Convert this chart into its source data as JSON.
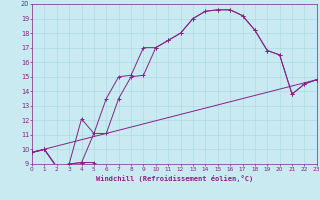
{
  "xlabel": "Windchill (Refroidissement éolien,°C)",
  "xlim": [
    0,
    23
  ],
  "ylim": [
    9,
    20
  ],
  "xticks": [
    0,
    1,
    2,
    3,
    4,
    5,
    6,
    7,
    8,
    9,
    10,
    11,
    12,
    13,
    14,
    15,
    16,
    17,
    18,
    19,
    20,
    21,
    22,
    23
  ],
  "yticks": [
    9,
    10,
    11,
    12,
    13,
    14,
    15,
    16,
    17,
    18,
    19,
    20
  ],
  "bg_color": "#c8eaf0",
  "grid_color": "#a8d8e0",
  "line_color": "#882288",
  "lines": [
    {
      "x": [
        0,
        1,
        2,
        3,
        4,
        5,
        6,
        7,
        8,
        9,
        10,
        11,
        12,
        13,
        14,
        15,
        16,
        17,
        18,
        19,
        20,
        21,
        22,
        23
      ],
      "y": [
        9.8,
        10.0,
        8.8,
        9.0,
        9.1,
        11.1,
        13.5,
        15.0,
        15.1,
        17.0,
        17.0,
        17.5,
        18.0,
        19.0,
        19.5,
        19.6,
        19.6,
        19.2,
        18.2,
        16.8,
        16.5,
        13.8,
        14.5,
        14.8
      ],
      "marker": true
    },
    {
      "x": [
        0,
        1,
        2,
        3,
        4,
        5,
        6,
        7,
        8,
        9,
        10,
        11,
        12,
        13,
        14,
        15,
        16,
        17,
        18,
        19,
        20,
        21,
        22,
        23
      ],
      "y": [
        9.8,
        10.0,
        8.8,
        9.0,
        12.1,
        11.1,
        11.1,
        13.5,
        15.0,
        15.1,
        17.0,
        17.5,
        18.0,
        19.0,
        19.5,
        19.6,
        19.6,
        19.2,
        18.2,
        16.8,
        16.5,
        13.8,
        14.5,
        14.8
      ],
      "marker": true
    },
    {
      "x": [
        0,
        23
      ],
      "y": [
        9.8,
        14.8
      ],
      "marker": false
    },
    {
      "x": [
        0,
        1,
        2,
        3,
        4,
        5
      ],
      "y": [
        9.8,
        10.0,
        8.8,
        9.0,
        9.1,
        9.1
      ],
      "marker": true
    }
  ]
}
